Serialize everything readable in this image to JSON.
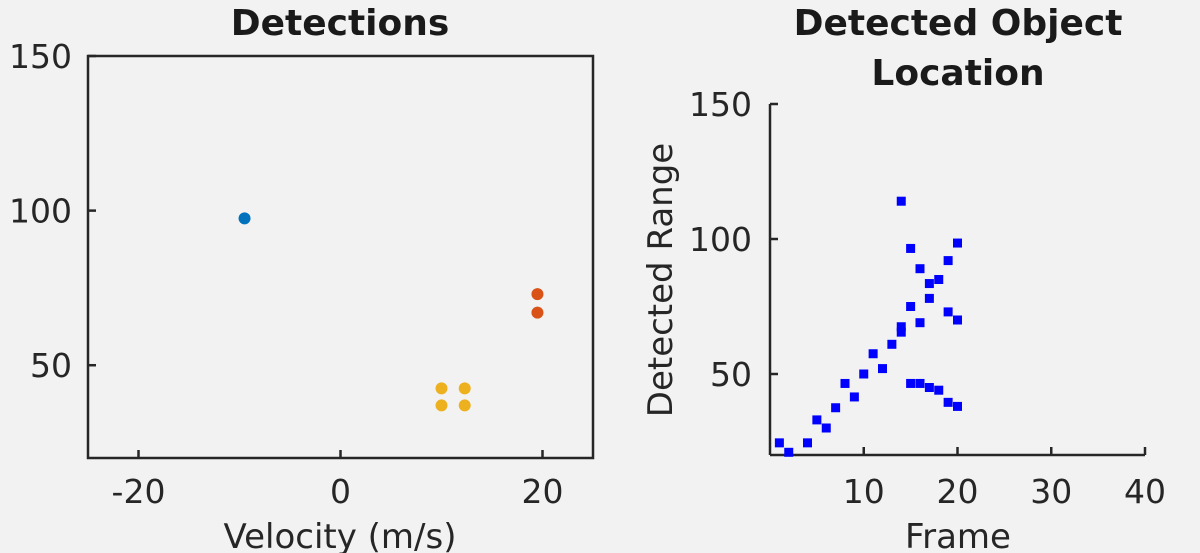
{
  "chart_data": [
    {
      "type": "scatter",
      "title": "Detections",
      "xlabel": "Velocity (m/s)",
      "ylabel": "",
      "xlim": [
        -25,
        25
      ],
      "ylim": [
        20,
        150
      ],
      "xticks": [
        -20,
        0,
        20
      ],
      "yticks": [
        50,
        100,
        150
      ],
      "xtick_labels": [
        "-20",
        "0",
        "20"
      ],
      "ytick_labels": [
        "50",
        "100",
        "150"
      ],
      "box": true,
      "grid": false,
      "series": [
        {
          "color": "#0072bd",
          "points": [
            [
              -9.5,
              97.5
            ]
          ]
        },
        {
          "color": "#d95319",
          "points": [
            [
              19.5,
              73
            ],
            [
              19.5,
              67
            ]
          ]
        },
        {
          "color": "#edb120",
          "points": [
            [
              10,
              42.5
            ],
            [
              12.3,
              42.5
            ],
            [
              10,
              37
            ],
            [
              12.3,
              37
            ]
          ]
        }
      ]
    },
    {
      "type": "scatter",
      "title": [
        "Detected Object",
        "Location"
      ],
      "xlabel": "Frame",
      "ylabel": "Detected Range",
      "xlim": [
        0,
        40
      ],
      "ylim": [
        20,
        150
      ],
      "xticks": [
        10,
        20,
        30,
        40
      ],
      "yticks": [
        50,
        100,
        150
      ],
      "xtick_labels": [
        "10",
        "20",
        "30",
        "40"
      ],
      "ytick_labels": [
        "50",
        "100",
        "150"
      ],
      "box": false,
      "grid": false,
      "series": [
        {
          "color": "#0000ff",
          "points": [
            [
              1,
              24.5
            ],
            [
              2,
              21
            ],
            [
              4,
              24.5
            ],
            [
              5,
              33
            ],
            [
              6,
              30
            ],
            [
              7,
              37.5
            ],
            [
              8,
              46.5
            ],
            [
              9,
              41.5
            ],
            [
              10,
              50
            ],
            [
              11,
              57.5
            ],
            [
              12,
              52
            ],
            [
              13,
              61
            ],
            [
              14,
              65.5
            ],
            [
              14,
              67.5
            ],
            [
              14,
              114
            ],
            [
              15,
              96.5
            ],
            [
              15,
              75
            ],
            [
              15,
              46.5
            ],
            [
              16,
              89
            ],
            [
              16,
              69
            ],
            [
              16,
              46.5
            ],
            [
              17,
              83.5
            ],
            [
              17,
              78
            ],
            [
              17,
              45
            ],
            [
              18,
              85
            ],
            [
              18,
              44
            ],
            [
              19,
              92
            ],
            [
              19,
              73
            ],
            [
              19,
              39.5
            ],
            [
              20,
              98.5
            ],
            [
              20,
              70
            ],
            [
              20,
              38
            ]
          ]
        }
      ]
    }
  ]
}
